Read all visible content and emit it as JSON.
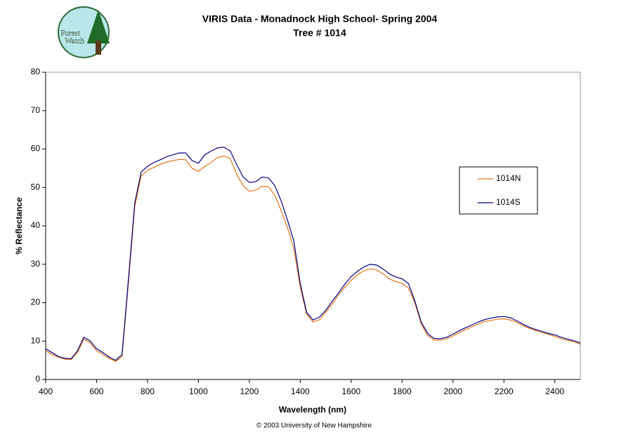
{
  "logo": {
    "text": [
      "Forest",
      "Watch"
    ]
  },
  "chart_data": {
    "type": "line",
    "title": [
      "VIRIS Data - Monadnock High School- Spring 2004",
      "Tree # 1014"
    ],
    "xlabel": "Wavelength (nm)",
    "ylabel": "% Reflectance",
    "footnote": "© 2003 University of New Hampshire",
    "x": [
      400,
      425,
      450,
      475,
      500,
      525,
      550,
      575,
      600,
      625,
      650,
      675,
      700,
      725,
      750,
      775,
      800,
      825,
      850,
      875,
      900,
      925,
      950,
      975,
      1000,
      1025,
      1050,
      1075,
      1100,
      1125,
      1150,
      1175,
      1200,
      1225,
      1250,
      1275,
      1300,
      1325,
      1350,
      1375,
      1400,
      1425,
      1450,
      1475,
      1500,
      1525,
      1550,
      1575,
      1600,
      1625,
      1650,
      1675,
      1700,
      1725,
      1750,
      1775,
      1800,
      1825,
      1850,
      1875,
      1900,
      1925,
      1950,
      1975,
      2000,
      2025,
      2050,
      2075,
      2100,
      2125,
      2150,
      2175,
      2200,
      2225,
      2250,
      2275,
      2300,
      2325,
      2350,
      2375,
      2400,
      2425,
      2450,
      2475,
      2500
    ],
    "series": [
      {
        "name": "1014N",
        "color": "#e8731a",
        "values": [
          7.5,
          6.5,
          5.8,
          5.3,
          5.2,
          7,
          10.5,
          9.5,
          7.5,
          6.5,
          5.5,
          4.7,
          6,
          25,
          45,
          53,
          54.5,
          55.2,
          56,
          56.6,
          57,
          57.3,
          57.2,
          55,
          54.2,
          55.5,
          56.5,
          57.8,
          58.2,
          57.5,
          53.5,
          50.5,
          49,
          49.3,
          50.3,
          50.2,
          48,
          44,
          39.5,
          34,
          24,
          17,
          15,
          15.5,
          17.5,
          19.5,
          22,
          24,
          25.8,
          27.3,
          28.3,
          28.8,
          28.5,
          27.5,
          26.2,
          25.5,
          25,
          23.8,
          20,
          14.5,
          11.5,
          10.3,
          10.2,
          10.6,
          11.3,
          12.2,
          13,
          13.7,
          14.5,
          15.1,
          15.4,
          15.7,
          15.8,
          15.5,
          14.9,
          14,
          13.3,
          12.7,
          12.2,
          11.8,
          11.2,
          10.6,
          10.2,
          9.8,
          9.2
        ]
      },
      {
        "name": "1014S",
        "color": "#000080",
        "values": [
          8,
          7,
          6,
          5.5,
          5.4,
          7.5,
          11,
          10,
          8,
          7,
          5.8,
          5,
          6.5,
          26,
          46,
          54,
          55.5,
          56.5,
          57.2,
          58,
          58.5,
          59,
          59,
          57,
          56.3,
          58.5,
          59.5,
          60.3,
          60.5,
          59.5,
          56,
          52.8,
          51.3,
          51.5,
          52.7,
          52.5,
          50.5,
          46.5,
          41.5,
          36,
          25,
          17.5,
          15.5,
          16.2,
          18,
          20.3,
          22.5,
          24.8,
          26.8,
          28.2,
          29.3,
          30,
          29.8,
          28.8,
          27.5,
          26.7,
          26.2,
          25,
          20.5,
          15,
          12,
          10.7,
          10.6,
          11,
          11.8,
          12.7,
          13.5,
          14.2,
          15,
          15.6,
          16,
          16.3,
          16.4,
          16.1,
          15.3,
          14.4,
          13.6,
          13,
          12.5,
          12,
          11.6,
          11,
          10.5,
          10.1,
          9.5
        ]
      }
    ],
    "xlim": [
      400,
      2500
    ],
    "xticks": [
      400,
      600,
      800,
      1000,
      1200,
      1400,
      1600,
      1800,
      2000,
      2200,
      2400
    ],
    "ylim": [
      0,
      80
    ],
    "yticks": [
      0,
      10,
      20,
      30,
      40,
      50,
      60,
      70,
      80
    ],
    "legend": "right"
  }
}
